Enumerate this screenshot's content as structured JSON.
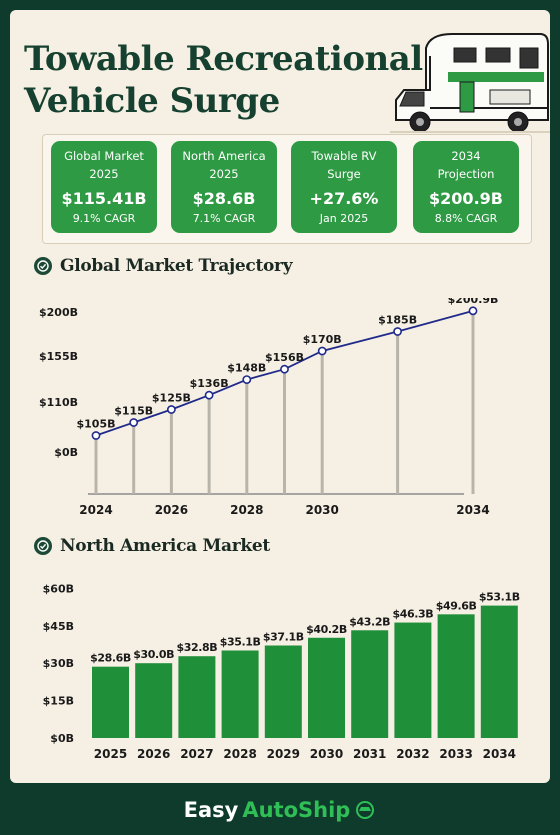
{
  "title_line1": "Towable Recreational",
  "title_line2": "Vehicle Surge",
  "stats": [
    {
      "label1": "Global Market",
      "label2": "2025",
      "value": "$115.41B",
      "sub": "9.1% CAGR"
    },
    {
      "label1": "North America",
      "label2": "2025",
      "value": "$28.6B",
      "sub": "7.1% CAGR"
    },
    {
      "label1": "Towable RV",
      "label2": "Surge",
      "value": "+27.6%",
      "sub": "Jan 2025"
    },
    {
      "label1": "2034",
      "label2": "Projection",
      "value": "$200.9B",
      "sub": "8.8% CAGR"
    }
  ],
  "section1_title": "Global Market Trajectory",
  "section2_title": "North America Market",
  "footer_brand_part1": "Easy",
  "footer_brand_part2": "AutoShip",
  "colors": {
    "dark_green": "#16402f",
    "accent_green": "#2f9a44",
    "line_blue": "#1f2a8a",
    "bg": "#f6f0e4"
  },
  "chart_data": [
    {
      "type": "line",
      "title": "Global Market Trajectory",
      "x": [
        2024,
        2025,
        2026,
        2027,
        2028,
        2029,
        2030,
        2032,
        2034
      ],
      "values": [
        105,
        115,
        125,
        136,
        148,
        156,
        170,
        185,
        200.9
      ],
      "data_labels": [
        "$105B",
        "$115B",
        "$125B",
        "$136B",
        "$148B",
        "$156B",
        "$170B",
        "$185B",
        "$200.9B"
      ],
      "x_tick_labels": [
        "2024",
        "2026",
        "2028",
        "2030",
        "2034"
      ],
      "y_tick_labels": [
        "$200B",
        "$155B",
        "$110B",
        "$0B"
      ],
      "grid": false
    },
    {
      "type": "bar",
      "title": "North America Market",
      "categories": [
        "2025",
        "2026",
        "2027",
        "2028",
        "2029",
        "2030",
        "2031",
        "2032",
        "2033",
        "2034"
      ],
      "values": [
        28.6,
        30.0,
        32.8,
        35.1,
        37.1,
        40.2,
        43.2,
        46.3,
        49.6,
        53.1
      ],
      "data_labels": [
        "$28.6B",
        "$30.0B",
        "$32.8B",
        "$35.1B",
        "$37.1B",
        "$40.2B",
        "$43.2B",
        "$46.3B",
        "$49.6B",
        "$53.1B"
      ],
      "y_tick_labels": [
        "$60B",
        "$45B",
        "$30B",
        "$15B",
        "$0B"
      ],
      "ylim": [
        0,
        60
      ],
      "grid": false
    }
  ]
}
